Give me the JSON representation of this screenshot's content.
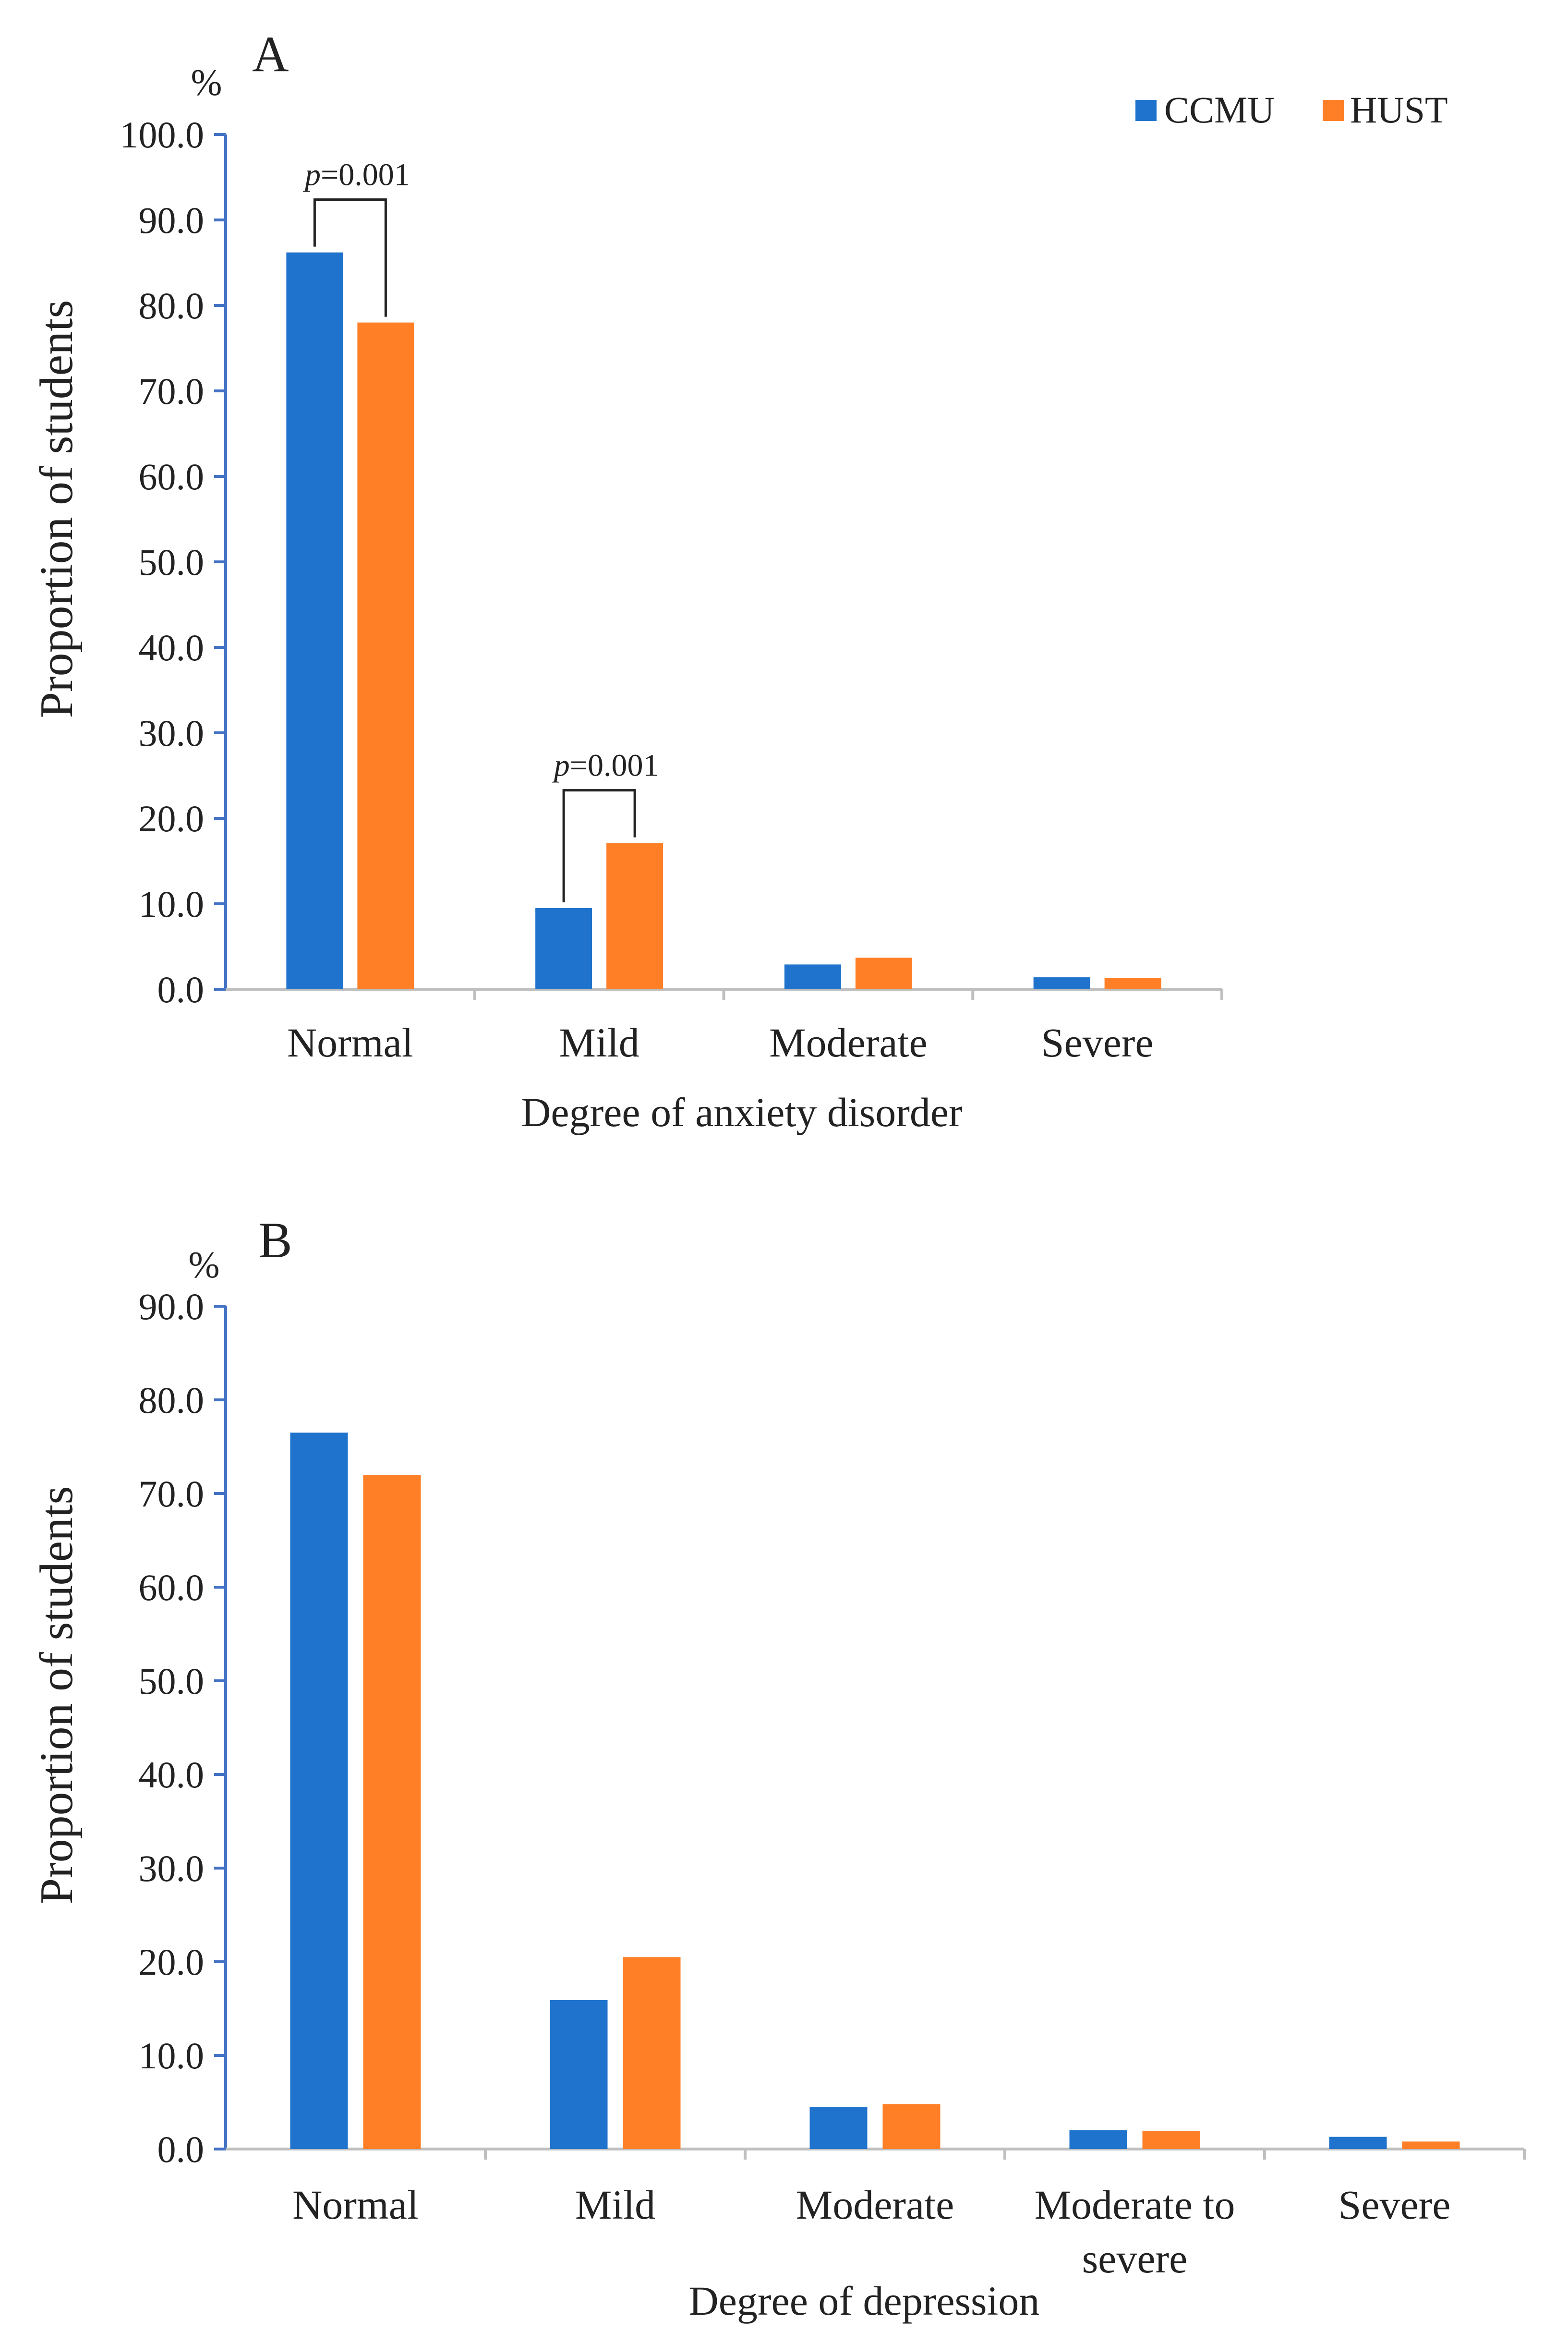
{
  "legend": {
    "entries": [
      {
        "name": "CCMU",
        "color": "#1F73CC"
      },
      {
        "name": "HUST",
        "color": "#FF7F27"
      }
    ]
  },
  "colors": {
    "axis": "#4472C4",
    "baseline": "#BFBFBF",
    "bracket": "#222222"
  },
  "chart_data": [
    {
      "panel": "A",
      "type": "bar",
      "unit_label": "%",
      "xlabel": "Degree of anxiety disorder",
      "ylabel": "Proportion of students",
      "ylim": [
        0,
        100
      ],
      "yticks": [
        "100.0",
        "90.0",
        "80.0",
        "70.0",
        "60.0",
        "50.0",
        "40.0",
        "30.0",
        "20.0",
        "10.0",
        "0.0"
      ],
      "categories": [
        [
          "Normal"
        ],
        [
          "Mild"
        ],
        [
          "Moderate"
        ],
        [
          "Severe"
        ]
      ],
      "series": [
        {
          "name": "CCMU",
          "values": [
            86.2,
            9.5,
            2.9,
            1.4
          ]
        },
        {
          "name": "HUST",
          "values": [
            78.0,
            17.1,
            3.7,
            1.3
          ]
        }
      ],
      "annotations": [
        {
          "category_index": 0,
          "p_symbol": "p",
          "text": "=0.001"
        },
        {
          "category_index": 1,
          "p_symbol": "p",
          "text": "=0.001"
        }
      ]
    },
    {
      "panel": "B",
      "type": "bar",
      "unit_label": "%",
      "xlabel": "Degree of depression",
      "ylabel": "Proportion of students",
      "ylim": [
        0,
        90
      ],
      "yticks": [
        "90.0",
        "80.0",
        "70.0",
        "60.0",
        "50.0",
        "40.0",
        "30.0",
        "20.0",
        "10.0",
        "0.0"
      ],
      "categories": [
        [
          "Normal"
        ],
        [
          "Mild"
        ],
        [
          "Moderate"
        ],
        [
          "Moderate to",
          "severe"
        ],
        [
          "Severe"
        ]
      ],
      "series": [
        {
          "name": "CCMU",
          "values": [
            76.5,
            15.9,
            4.5,
            2.0,
            1.3
          ]
        },
        {
          "name": "HUST",
          "values": [
            72.0,
            20.5,
            4.8,
            1.9,
            0.8
          ]
        }
      ],
      "annotations": []
    }
  ]
}
